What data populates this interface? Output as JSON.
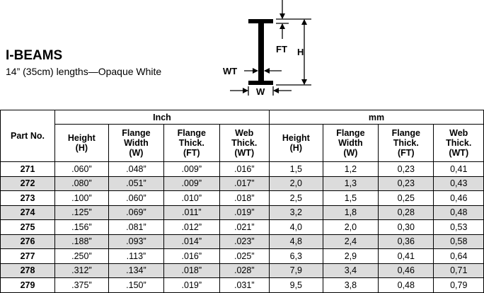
{
  "header": {
    "title": "I-BEAMS",
    "subtitle": "14” (35cm) lengths—Opaque White"
  },
  "diagram": {
    "labels": {
      "ft": "FT",
      "h": "H",
      "wt": "WT",
      "w": "W"
    }
  },
  "table": {
    "part_header": "Part No.",
    "groups": [
      "Inch",
      "mm"
    ],
    "columns": [
      "Height\n(H)",
      "Flange\nWidth\n(W)",
      "Flange\nThick.\n(FT)",
      "Web\nThick.\n(WT)",
      "Height\n(H)",
      "Flange\nWidth\n(W)",
      "Flange\nThick.\n(FT)",
      "Web\nThick.\n(WT)"
    ],
    "rows": [
      [
        "271",
        ".060”",
        ".048”",
        ".009”",
        ".016”",
        "1,5",
        "1,2",
        "0,23",
        "0,41"
      ],
      [
        "272",
        ".080”",
        ".051”",
        ".009”",
        ".017”",
        "2,0",
        "1,3",
        "0,23",
        "0,43"
      ],
      [
        "273",
        ".100”",
        ".060”",
        ".010”",
        ".018”",
        "2,5",
        "1,5",
        "0,25",
        "0,46"
      ],
      [
        "274",
        ".125”",
        ".069”",
        ".011”",
        ".019”",
        "3,2",
        "1,8",
        "0,28",
        "0,48"
      ],
      [
        "275",
        ".156”",
        ".081”",
        ".012”",
        ".021”",
        "4,0",
        "2,0",
        "0,30",
        "0,53"
      ],
      [
        "276",
        ".188”",
        ".093”",
        ".014”",
        ".023”",
        "4,8",
        "2,4",
        "0,36",
        "0,58"
      ],
      [
        "277",
        ".250”",
        ".113”",
        ".016”",
        ".025”",
        "6,3",
        "2,9",
        "0,41",
        "0,64"
      ],
      [
        "278",
        ".312”",
        ".134”",
        ".018”",
        ".028”",
        "7,9",
        "3,4",
        "0,46",
        "0,71"
      ],
      [
        "279",
        ".375”",
        ".150”",
        ".019”",
        ".031”",
        "9,5",
        "3,8",
        "0,48",
        "0,79"
      ]
    ]
  }
}
